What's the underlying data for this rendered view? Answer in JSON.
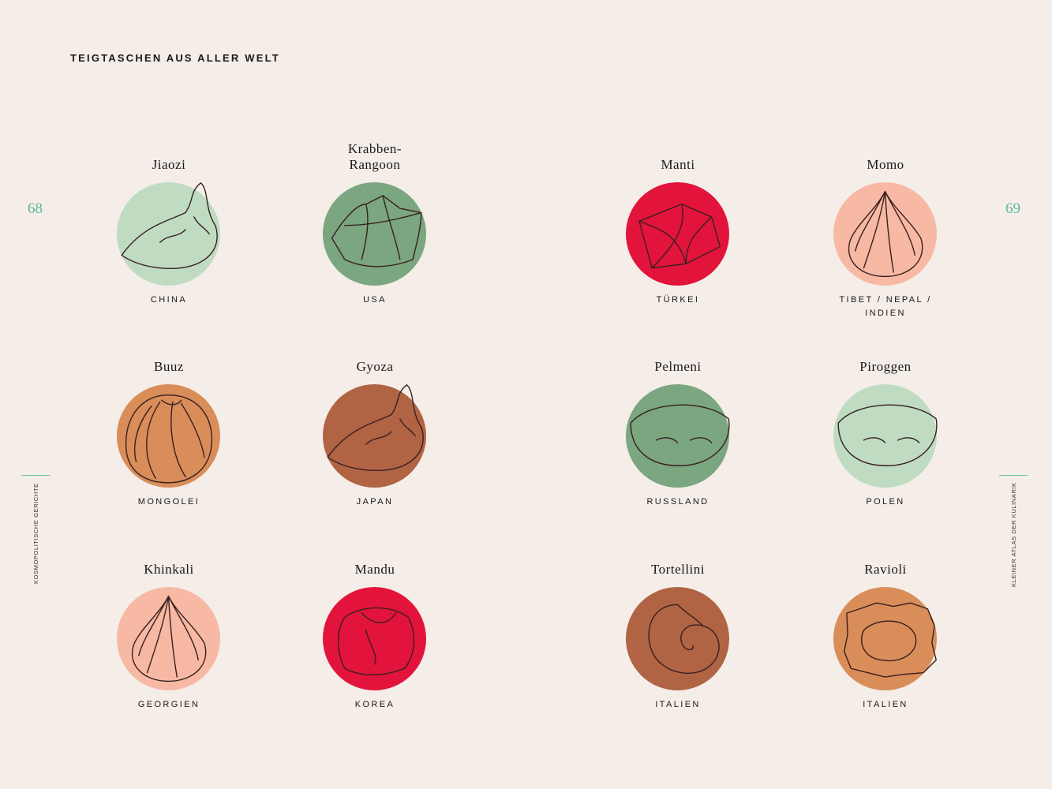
{
  "heading": "TEIGTASCHEN AUS ALLER WELT",
  "page_left": "68",
  "page_right": "69",
  "side_left": "KOSMOPOLITISCHE GERICHTE",
  "side_right": "KLEINER ATLAS DER KULINARIK",
  "colors": {
    "light_green": "#bfdcc3",
    "sage": "#7aa680",
    "red": "#e2143b",
    "salmon": "#f7b9a3",
    "orange": "#d98d59",
    "brown": "#b06444"
  },
  "dumplings": [
    {
      "name": "Jiaozi",
      "country": "CHINA",
      "color": "#bfdcc3",
      "icon": "crescent-dumpling-icon"
    },
    {
      "name": "Krabben-\nRangoon",
      "country": "USA",
      "color": "#7aa680",
      "icon": "folded-wonton-icon"
    },
    {
      "name": "Manti",
      "country": "TÜRKEI",
      "color": "#e2143b",
      "icon": "square-dumpling-icon"
    },
    {
      "name": "Momo",
      "country": "TIBET / NEPAL /\nINDIEN",
      "color": "#f7b9a3",
      "icon": "pleated-bun-icon"
    },
    {
      "name": "Buuz",
      "country": "MONGOLEI",
      "color": "#d98d59",
      "icon": "round-bun-icon"
    },
    {
      "name": "Gyoza",
      "country": "JAPAN",
      "color": "#b06444",
      "icon": "crescent-dumpling-icon"
    },
    {
      "name": "Pelmeni",
      "country": "RUSSLAND",
      "color": "#7aa680",
      "icon": "half-moon-dumpling-icon"
    },
    {
      "name": "Piroggen",
      "country": "POLEN",
      "color": "#bfdcc3",
      "icon": "half-moon-dumpling-icon"
    },
    {
      "name": "Khinkali",
      "country": "GEORGIEN",
      "color": "#f7b9a3",
      "icon": "pleated-bun-icon"
    },
    {
      "name": "Mandu",
      "country": "KOREA",
      "color": "#e2143b",
      "icon": "round-dumpling-icon"
    },
    {
      "name": "Tortellini",
      "country": "ITALIEN",
      "color": "#b06444",
      "icon": "ring-pasta-icon"
    },
    {
      "name": "Ravioli",
      "country": "ITALIEN",
      "color": "#d98d59",
      "icon": "square-ravioli-icon"
    }
  ]
}
